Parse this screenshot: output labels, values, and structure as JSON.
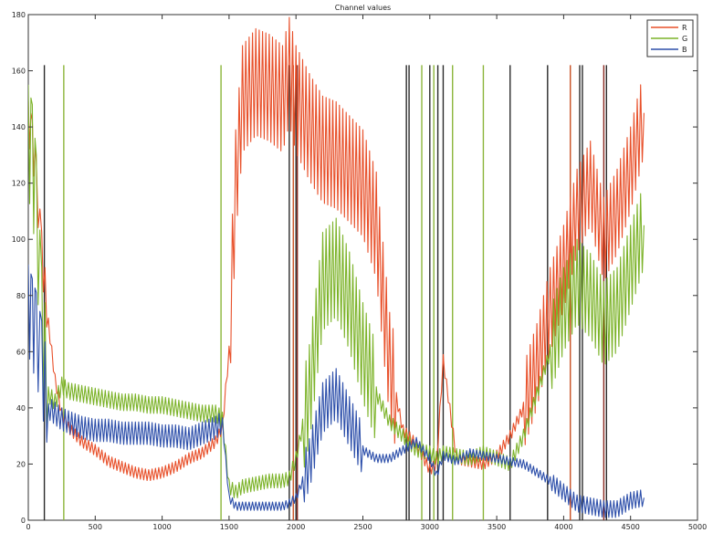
{
  "chart_data": {
    "type": "line",
    "title": "Channel values",
    "xlim": [
      0,
      5000
    ],
    "ylim": [
      0,
      180
    ],
    "x_ticks": [
      0,
      500,
      1000,
      1500,
      2000,
      2500,
      3000,
      3500,
      4000,
      4500,
      5000
    ],
    "y_ticks": [
      0,
      20,
      40,
      60,
      80,
      100,
      120,
      140,
      160,
      180
    ],
    "x_tick_labels": [
      "0",
      "500",
      "1000",
      "1500",
      "2000",
      "2500",
      "3000",
      "3500",
      "4000",
      "4500",
      "5000"
    ],
    "y_tick_labels": [
      "0",
      "20",
      "40",
      "60",
      "80",
      "100",
      "120",
      "140",
      "160",
      "180"
    ],
    "grid": false,
    "legend_position": "top-right",
    "series": [
      {
        "name": "R",
        "color": "#e8502a",
        "values": [
          [
            0,
            142
          ],
          [
            30,
            135
          ],
          [
            60,
            120
          ],
          [
            100,
            95
          ],
          [
            150,
            70
          ],
          [
            200,
            50
          ],
          [
            250,
            38
          ],
          [
            300,
            33
          ],
          [
            400,
            28
          ],
          [
            500,
            25
          ],
          [
            600,
            21
          ],
          [
            700,
            19
          ],
          [
            800,
            17
          ],
          [
            900,
            16
          ],
          [
            1000,
            17
          ],
          [
            1100,
            19
          ],
          [
            1200,
            22
          ],
          [
            1300,
            24
          ],
          [
            1400,
            28
          ],
          [
            1450,
            33
          ],
          [
            1500,
            60
          ],
          [
            1550,
            120
          ],
          [
            1600,
            150
          ],
          [
            1700,
            156
          ],
          [
            1800,
            154
          ],
          [
            1900,
            150
          ],
          [
            1950,
            160
          ],
          [
            2000,
            150
          ],
          [
            2100,
            140
          ],
          [
            2200,
            132
          ],
          [
            2300,
            130
          ],
          [
            2400,
            125
          ],
          [
            2500,
            120
          ],
          [
            2600,
            105
          ],
          [
            2700,
            55
          ],
          [
            2800,
            32
          ],
          [
            2900,
            27
          ],
          [
            3000,
            18
          ],
          [
            3050,
            20
          ],
          [
            3100,
            57
          ],
          [
            3200,
            22
          ],
          [
            3300,
            21
          ],
          [
            3400,
            20
          ],
          [
            3500,
            23
          ],
          [
            3600,
            30
          ],
          [
            3700,
            40
          ],
          [
            3800,
            55
          ],
          [
            3900,
            75
          ],
          [
            4000,
            90
          ],
          [
            4100,
            110
          ],
          [
            4200,
            120
          ],
          [
            4300,
            100
          ],
          [
            4400,
            110
          ],
          [
            4500,
            125
          ],
          [
            4600,
            145
          ]
        ]
      },
      {
        "name": "G",
        "color": "#7cb329",
        "values": [
          [
            0,
            135
          ],
          [
            30,
            128
          ],
          [
            60,
            110
          ],
          [
            100,
            70
          ],
          [
            150,
            45
          ],
          [
            200,
            42
          ],
          [
            250,
            48
          ],
          [
            300,
            46
          ],
          [
            400,
            45
          ],
          [
            500,
            44
          ],
          [
            600,
            43
          ],
          [
            700,
            42
          ],
          [
            800,
            42
          ],
          [
            900,
            41
          ],
          [
            1000,
            41
          ],
          [
            1100,
            40
          ],
          [
            1200,
            39
          ],
          [
            1300,
            38
          ],
          [
            1400,
            38
          ],
          [
            1450,
            36
          ],
          [
            1500,
            12
          ],
          [
            1550,
            10
          ],
          [
            1600,
            12
          ],
          [
            1700,
            13
          ],
          [
            1800,
            14
          ],
          [
            1900,
            14
          ],
          [
            1950,
            15
          ],
          [
            2000,
            22
          ],
          [
            2100,
            45
          ],
          [
            2200,
            85
          ],
          [
            2300,
            90
          ],
          [
            2400,
            78
          ],
          [
            2500,
            60
          ],
          [
            2600,
            45
          ],
          [
            2700,
            35
          ],
          [
            2800,
            30
          ],
          [
            2900,
            25
          ],
          [
            3000,
            24
          ],
          [
            3050,
            22
          ],
          [
            3100,
            24
          ],
          [
            3200,
            23
          ],
          [
            3300,
            22
          ],
          [
            3400,
            24
          ],
          [
            3500,
            22
          ],
          [
            3600,
            20
          ],
          [
            3700,
            30
          ],
          [
            3800,
            45
          ],
          [
            3900,
            60
          ],
          [
            4000,
            75
          ],
          [
            4100,
            85
          ],
          [
            4200,
            80
          ],
          [
            4300,
            70
          ],
          [
            4400,
            75
          ],
          [
            4500,
            90
          ],
          [
            4600,
            105
          ]
        ]
      },
      {
        "name": "B",
        "color": "#2d4faa",
        "values": [
          [
            0,
            75
          ],
          [
            30,
            70
          ],
          [
            60,
            65
          ],
          [
            100,
            55
          ],
          [
            150,
            40
          ],
          [
            200,
            38
          ],
          [
            250,
            36
          ],
          [
            300,
            35
          ],
          [
            400,
            33
          ],
          [
            500,
            32
          ],
          [
            600,
            32
          ],
          [
            700,
            31
          ],
          [
            800,
            31
          ],
          [
            900,
            31
          ],
          [
            1000,
            30
          ],
          [
            1100,
            30
          ],
          [
            1200,
            29
          ],
          [
            1300,
            31
          ],
          [
            1400,
            33
          ],
          [
            1450,
            35
          ],
          [
            1500,
            8
          ],
          [
            1550,
            5
          ],
          [
            1600,
            5
          ],
          [
            1700,
            5
          ],
          [
            1800,
            5
          ],
          [
            1900,
            5
          ],
          [
            1950,
            6
          ],
          [
            2000,
            8
          ],
          [
            2100,
            20
          ],
          [
            2200,
            40
          ],
          [
            2300,
            45
          ],
          [
            2400,
            35
          ],
          [
            2500,
            25
          ],
          [
            2600,
            22
          ],
          [
            2700,
            22
          ],
          [
            2800,
            25
          ],
          [
            2900,
            28
          ],
          [
            3000,
            22
          ],
          [
            3050,
            16
          ],
          [
            3100,
            23
          ],
          [
            3200,
            21
          ],
          [
            3300,
            24
          ],
          [
            3400,
            23
          ],
          [
            3500,
            22
          ],
          [
            3600,
            21
          ],
          [
            3700,
            20
          ],
          [
            3800,
            17
          ],
          [
            3900,
            14
          ],
          [
            4000,
            10
          ],
          [
            4100,
            6
          ],
          [
            4200,
            5
          ],
          [
            4300,
            4
          ],
          [
            4400,
            4
          ],
          [
            4500,
            7
          ],
          [
            4600,
            8
          ]
        ]
      }
    ]
  },
  "vertical_lines": [
    {
      "x": 120,
      "color": "#2a2a2a"
    },
    {
      "x": 265,
      "color": "#8cb53a"
    },
    {
      "x": 1440,
      "color": "#8cb53a"
    },
    {
      "x": 1950,
      "color": "#2a2a2a"
    },
    {
      "x": 1980,
      "color": "#c85024"
    },
    {
      "x": 2000,
      "color": "#2a2a2a"
    },
    {
      "x": 2010,
      "color": "#8a2a20"
    },
    {
      "x": 2825,
      "color": "#2a2a2a"
    },
    {
      "x": 2845,
      "color": "#2a2a2a"
    },
    {
      "x": 2940,
      "color": "#8cb53a"
    },
    {
      "x": 3000,
      "color": "#2a2a2a"
    },
    {
      "x": 3030,
      "color": "#8cb53a"
    },
    {
      "x": 3060,
      "color": "#2a2a2a"
    },
    {
      "x": 3100,
      "color": "#2a2a2a"
    },
    {
      "x": 3170,
      "color": "#8cb53a"
    },
    {
      "x": 3400,
      "color": "#8cb53a"
    },
    {
      "x": 3600,
      "color": "#2a2a2a"
    },
    {
      "x": 3880,
      "color": "#2a2a2a"
    },
    {
      "x": 4050,
      "color": "#c85024"
    },
    {
      "x": 4120,
      "color": "#2a2a2a"
    },
    {
      "x": 4140,
      "color": "#2a2a2a"
    },
    {
      "x": 4300,
      "color": "#8a2a20"
    },
    {
      "x": 4320,
      "color": "#2a2a2a"
    }
  ]
}
